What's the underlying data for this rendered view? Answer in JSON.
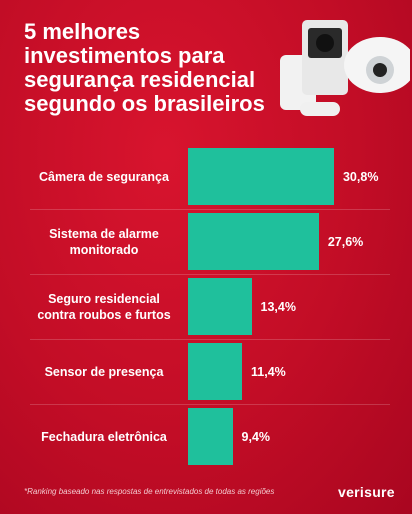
{
  "chart_data": {
    "type": "bar",
    "orientation": "horizontal",
    "title_lines": [
      "5 melhores",
      "investimentos para",
      "segurança residencial",
      "segundo os brasileiros"
    ],
    "categories": [
      "Câmera de segurança",
      "Sistema de alarme monitorado",
      "Seguro residencial contra roubos e furtos",
      "Sensor de presença",
      "Fechadura eletrônica"
    ],
    "values": [
      30.8,
      27.6,
      13.4,
      11.4,
      9.4
    ],
    "value_labels": [
      "30,8%",
      "27,6%",
      "13,4%",
      "11,4%",
      "9,4%"
    ],
    "color": "#1fc09c",
    "footnote": "*Ranking baseado nas respostas de entrevistados de todas as regiões",
    "logo": "verisure"
  }
}
